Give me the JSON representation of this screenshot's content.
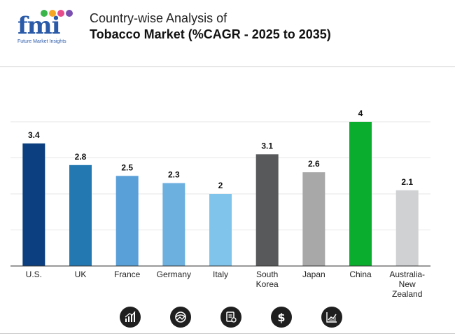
{
  "header": {
    "logo_text": "fmi",
    "logo_subtitle": "Future Market Insights",
    "title_line1": "Country-wise Analysis of",
    "title_line2": "Tobacco Market (%CAGR - 2025 to 2035)"
  },
  "chart_data": {
    "type": "bar",
    "title": "Country-wise Analysis of Tobacco Market (%CAGR - 2025 to 2035)",
    "xlabel": "",
    "ylabel": "",
    "ylim": [
      0,
      4.1
    ],
    "grid": true,
    "categories": [
      "U.S.",
      "UK",
      "France",
      "Germany",
      "Italy",
      "South Korea",
      "Japan",
      "China",
      "Australia-New Zealand"
    ],
    "category_lines": [
      [
        "U.S."
      ],
      [
        "UK"
      ],
      [
        "France"
      ],
      [
        "Germany"
      ],
      [
        "Italy"
      ],
      [
        "South",
        "Korea"
      ],
      [
        "Japan"
      ],
      [
        "China"
      ],
      [
        "Australia-",
        "New",
        "Zealand"
      ]
    ],
    "values": [
      3.4,
      2.8,
      2.5,
      2.3,
      2,
      3.1,
      2.6,
      4,
      2.1
    ],
    "value_labels": [
      "3.4",
      "2.8",
      "2.5",
      "2.3",
      "2",
      "3.1",
      "2.6",
      "4",
      "2.1"
    ],
    "colors": [
      "#0b3f7f",
      "#2478b2",
      "#5aa0d8",
      "#6cb0e0",
      "#80c4ec",
      "#58595b",
      "#a8a8a8",
      "#0aad2e",
      "#cfd1d3"
    ]
  },
  "footer": {
    "icons": [
      "bar-chart-icon",
      "globe-icon",
      "document-icon",
      "dollar-icon",
      "line-chart-icon"
    ]
  }
}
